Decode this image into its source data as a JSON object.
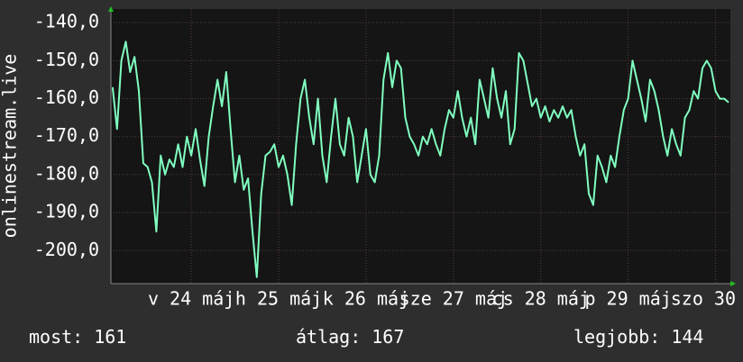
{
  "chart_data": {
    "type": "line",
    "y_label": "onlinestream.live",
    "x": [
      23.1,
      23.15,
      23.2,
      23.25,
      23.3,
      23.35,
      23.4,
      23.45,
      23.5,
      23.55,
      23.6,
      23.65,
      23.7,
      23.75,
      23.8,
      23.85,
      23.9,
      23.95,
      24,
      24.05,
      24.1,
      24.15,
      24.2,
      24.25,
      24.3,
      24.35,
      24.4,
      24.45,
      24.5,
      24.55,
      24.6,
      24.65,
      24.7,
      24.75,
      24.8,
      24.85,
      24.9,
      24.95,
      25,
      25.05,
      25.1,
      25.15,
      25.2,
      25.25,
      25.3,
      25.35,
      25.4,
      25.45,
      25.5,
      25.55,
      25.6,
      25.65,
      25.7,
      25.75,
      25.8,
      25.85,
      25.9,
      25.95,
      26,
      26.05,
      26.1,
      26.15,
      26.2,
      26.25,
      26.3,
      26.35,
      26.4,
      26.45,
      26.5,
      26.55,
      26.6,
      26.65,
      26.7,
      26.75,
      26.8,
      26.85,
      26.9,
      26.95,
      27,
      27.05,
      27.1,
      27.15,
      27.2,
      27.25,
      27.3,
      27.35,
      27.4,
      27.45,
      27.5,
      27.55,
      27.6,
      27.65,
      27.7,
      27.75,
      27.8,
      27.85,
      27.9,
      27.95,
      28,
      28.05,
      28.1,
      28.15,
      28.2,
      28.25,
      28.3,
      28.35,
      28.4,
      28.45,
      28.5,
      28.55,
      28.6,
      28.65,
      28.7,
      28.75,
      28.8,
      28.85,
      28.9,
      28.95,
      29,
      29.05,
      29.1,
      29.15,
      29.2,
      29.25,
      29.3,
      29.35,
      29.4,
      29.45,
      29.5,
      29.55,
      29.6,
      29.65,
      29.7,
      29.75,
      29.8,
      29.85,
      29.9,
      29.95,
      30,
      30.05,
      30.1,
      30.15
    ],
    "series": [
      {
        "color": "#80ffc0",
        "values": [
          -157,
          -168,
          -150,
          -145,
          -153,
          -149,
          -158,
          -177,
          -178,
          -182,
          -195,
          -175,
          -180,
          -176,
          -178,
          -172,
          -178,
          -170,
          -175,
          -168,
          -176,
          -183,
          -170,
          -162,
          -155,
          -162,
          -153,
          -168,
          -182,
          -175,
          -184,
          -181,
          -195,
          -207,
          -185,
          -175,
          -174,
          -172,
          -178,
          -175,
          -180,
          -188,
          -172,
          -160,
          -155,
          -165,
          -172,
          -160,
          -175,
          -182,
          -170,
          -160,
          -172,
          -175,
          -165,
          -170,
          -182,
          -175,
          -168,
          -180,
          -182,
          -175,
          -155,
          -148,
          -157,
          -150,
          -152,
          -165,
          -170,
          -172,
          -175,
          -170,
          -172,
          -168,
          -172,
          -175,
          -168,
          -163,
          -165,
          -158,
          -165,
          -170,
          -165,
          -172,
          -155,
          -160,
          -165,
          -152,
          -160,
          -165,
          -158,
          -172,
          -168,
          -148,
          -150,
          -156,
          -162,
          -160,
          -165,
          -162,
          -166,
          -163,
          -165,
          -162,
          -165,
          -163,
          -170,
          -175,
          -172,
          -185,
          -188,
          -175,
          -178,
          -182,
          -175,
          -178,
          -170,
          -163,
          -160,
          -150,
          -155,
          -160,
          -166,
          -155,
          -158,
          -163,
          -170,
          -175,
          -168,
          -172,
          -175,
          -165,
          -163,
          -158,
          -160,
          -152,
          -150,
          -152,
          -158,
          -160,
          -160,
          -161
        ]
      }
    ],
    "xlim": [
      23.08,
      30.17
    ],
    "xticks": [
      {
        "value": 24,
        "label": "v 24 máj"
      },
      {
        "value": 25,
        "label": "h 25 máj"
      },
      {
        "value": 26,
        "label": "k 26 máj"
      },
      {
        "value": 27,
        "label": "sze 27 máj"
      },
      {
        "value": 28,
        "label": "cs 28 máj"
      },
      {
        "value": 29,
        "label": "p 29 máj"
      },
      {
        "value": 30,
        "label": "szo 30"
      }
    ],
    "ylim": [
      -208.7,
      -136.4
    ],
    "yticks": [
      {
        "value": -200,
        "label": "-200,0"
      },
      {
        "value": -190,
        "label": "-190,0"
      },
      {
        "value": -180,
        "label": "-180,0"
      },
      {
        "value": -170,
        "label": "-170,0"
      },
      {
        "value": -160,
        "label": "-160,0"
      },
      {
        "value": -150,
        "label": "-150,0"
      },
      {
        "value": -140,
        "label": "-140,0"
      }
    ],
    "grid": true,
    "stats": [
      {
        "label": "most:",
        "value": 161
      },
      {
        "label": "átlag:",
        "value": 167
      },
      {
        "label": "legjobb:",
        "value": 144
      }
    ]
  }
}
